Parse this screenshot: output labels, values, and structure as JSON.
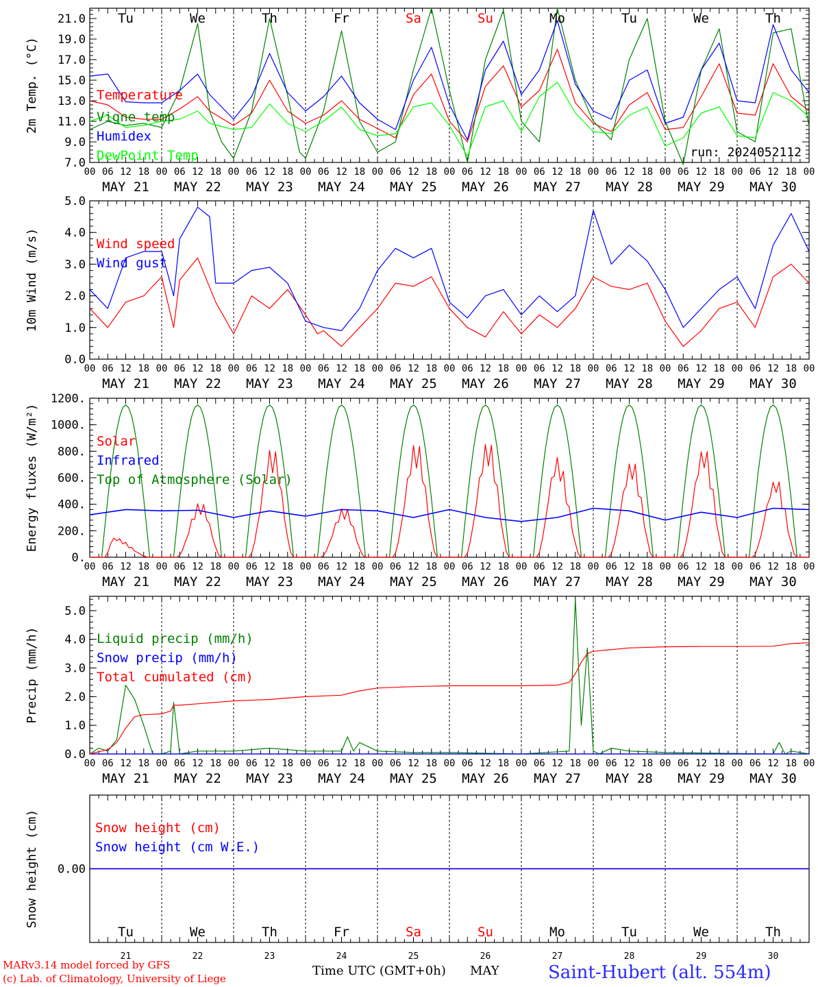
{
  "run_label": "run: 2024052112",
  "time_axis": {
    "hour_labels": [
      "00",
      "06",
      "12",
      "18"
    ],
    "end_label": "00",
    "date_labels": [
      "MAY 21",
      "MAY 22",
      "MAY 23",
      "MAY 24",
      "MAY 25",
      "MAY 26",
      "MAY 27",
      "MAY 28",
      "MAY 29",
      "MAY 30"
    ],
    "day_names": [
      "Tu",
      "We",
      "Th",
      "Fr",
      "Sa",
      "Su",
      "Mo",
      "Tu",
      "We",
      "Th"
    ],
    "weekend_flags": [
      false,
      false,
      false,
      false,
      true,
      true,
      false,
      false,
      false,
      false
    ],
    "day_numbers": [
      "21",
      "22",
      "23",
      "24",
      "25",
      "26",
      "27",
      "28",
      "29",
      "30"
    ],
    "xlabel": "Time UTC (GMT+0h)",
    "month_label": "MAY"
  },
  "footer": {
    "credit_line1": "MARv3.14 model forced by GFS",
    "credit_line2": "(c) Lab. of Climatology, University of Liege",
    "station": "Saint-Hubert (alt. 554m)"
  },
  "colors": {
    "red": "#ff0000",
    "blue": "#0000ff",
    "green": "#008000",
    "lightgreen": "#00ff00",
    "axis": "#000000",
    "weekend": "#ff0000"
  },
  "chart_data": [
    {
      "type": "line",
      "ylabel": "2m Temp. (°C)",
      "ylim": [
        7,
        22
      ],
      "yticks": [
        "7.0",
        "9.0",
        "11.0",
        "13.0",
        "15.0",
        "17.0",
        "19.0",
        "21.0"
      ],
      "x_unit": "hours since 2024-05-21 00 UTC",
      "series": [
        {
          "name": "Temperature",
          "color": "#ff0000",
          "x": [
            0,
            6,
            12,
            18,
            24,
            30,
            36,
            40,
            48,
            54,
            60,
            66,
            72,
            78,
            84,
            90,
            96,
            102,
            108,
            114,
            120,
            126,
            132,
            138,
            144,
            150,
            156,
            162,
            168,
            174,
            180,
            186,
            192,
            198,
            204,
            210,
            216,
            222,
            228,
            234,
            240
          ],
          "values": [
            13.0,
            12.6,
            11.4,
            11.2,
            11.2,
            12.2,
            13.4,
            12.0,
            10.6,
            11.8,
            15.0,
            12.0,
            10.8,
            11.6,
            13.0,
            11.2,
            10.3,
            9.4,
            13.6,
            15.6,
            11.0,
            9.0,
            14.4,
            16.4,
            12.4,
            14.0,
            18.0,
            12.8,
            10.8,
            10.0,
            12.6,
            13.8,
            10.2,
            10.4,
            13.4,
            16.6,
            11.8,
            11.6,
            16.6,
            13.4,
            12.0
          ]
        },
        {
          "name": "Vigne temp",
          "color": "#008000",
          "x": [
            0,
            6,
            12,
            18,
            24,
            30,
            36,
            40,
            44,
            48,
            54,
            60,
            66,
            70,
            72,
            78,
            84,
            90,
            96,
            102,
            108,
            114,
            120,
            126,
            132,
            138,
            144,
            150,
            156,
            162,
            168,
            174,
            180,
            186,
            192,
            198,
            204,
            210,
            216,
            222,
            228,
            234,
            240
          ],
          "values": [
            10.2,
            11.0,
            10.6,
            10.8,
            10.4,
            14.0,
            20.5,
            12.0,
            9.0,
            7.4,
            12.0,
            21.0,
            13.5,
            8.0,
            7.4,
            12.0,
            19.8,
            11.0,
            8.0,
            9.0,
            16.0,
            22.0,
            14.0,
            7.0,
            17.0,
            21.8,
            11.0,
            9.0,
            22.0,
            15.0,
            11.0,
            9.2,
            17.0,
            21.0,
            11.0,
            6.8,
            16.0,
            20.0,
            10.0,
            9.0,
            19.6,
            20.0,
            10.5
          ]
        },
        {
          "name": "Humidex",
          "color": "#0000ff",
          "x": [
            0,
            6,
            12,
            18,
            24,
            30,
            36,
            40,
            48,
            54,
            60,
            66,
            72,
            78,
            84,
            90,
            96,
            102,
            108,
            114,
            120,
            126,
            132,
            138,
            144,
            150,
            156,
            162,
            168,
            174,
            180,
            186,
            192,
            198,
            204,
            210,
            216,
            222,
            228,
            234,
            240
          ],
          "values": [
            15.4,
            15.6,
            12.9,
            12.8,
            12.8,
            14.0,
            15.6,
            13.6,
            11.2,
            13.4,
            17.6,
            13.8,
            12.0,
            13.4,
            15.4,
            12.8,
            11.2,
            10.2,
            15.0,
            18.2,
            12.6,
            9.2,
            16.0,
            18.8,
            13.6,
            16.0,
            20.8,
            14.6,
            12.0,
            11.2,
            15.0,
            16.0,
            10.8,
            11.4,
            16.0,
            18.6,
            13.0,
            12.8,
            20.4,
            16.0,
            13.8
          ]
        },
        {
          "name": "DewPoint Temp",
          "color": "#00ff00",
          "x": [
            0,
            6,
            12,
            18,
            24,
            30,
            36,
            40,
            48,
            54,
            60,
            66,
            72,
            78,
            84,
            90,
            96,
            102,
            108,
            114,
            120,
            126,
            132,
            138,
            144,
            150,
            156,
            162,
            168,
            174,
            180,
            186,
            192,
            198,
            204,
            210,
            216,
            222,
            228,
            234,
            240
          ],
          "values": [
            11.0,
            11.6,
            10.4,
            10.6,
            11.0,
            11.2,
            12.0,
            10.8,
            10.2,
            10.4,
            12.7,
            10.8,
            10.0,
            11.0,
            12.4,
            10.2,
            9.6,
            9.8,
            12.4,
            12.8,
            10.6,
            7.6,
            12.4,
            13.0,
            10.0,
            13.4,
            14.8,
            11.8,
            10.0,
            9.8,
            11.6,
            12.4,
            8.6,
            9.4,
            11.8,
            12.4,
            9.6,
            9.4,
            13.8,
            13.0,
            11.4
          ]
        }
      ]
    },
    {
      "type": "line",
      "ylabel": "10m Wind (m/s)",
      "ylim": [
        0,
        5
      ],
      "yticks": [
        "0.0",
        "1.0",
        "2.0",
        "3.0",
        "4.0",
        "5.0"
      ],
      "series": [
        {
          "name": "Wind speed",
          "color": "#ff0000",
          "x": [
            0,
            6,
            12,
            18,
            24,
            28,
            30,
            36,
            42,
            48,
            54,
            60,
            66,
            72,
            76,
            78,
            84,
            90,
            96,
            102,
            108,
            114,
            120,
            126,
            132,
            138,
            144,
            150,
            156,
            162,
            168,
            174,
            180,
            186,
            192,
            198,
            204,
            210,
            216,
            222,
            228,
            234,
            240
          ],
          "values": [
            1.6,
            1.0,
            1.8,
            2.0,
            2.6,
            1.0,
            2.5,
            3.2,
            1.8,
            0.8,
            2.0,
            1.6,
            2.2,
            1.4,
            0.8,
            0.9,
            0.4,
            1.0,
            1.6,
            2.4,
            2.3,
            2.6,
            1.6,
            1.0,
            0.7,
            1.5,
            0.8,
            1.4,
            1.0,
            1.6,
            2.6,
            2.3,
            2.2,
            2.4,
            1.2,
            0.4,
            0.9,
            1.6,
            1.8,
            1.0,
            2.6,
            3.0,
            2.4
          ]
        },
        {
          "name": "Wind gust",
          "color": "#0000ff",
          "x": [
            0,
            6,
            12,
            18,
            24,
            28,
            30,
            36,
            40,
            42,
            48,
            54,
            60,
            66,
            72,
            78,
            84,
            90,
            96,
            102,
            108,
            114,
            120,
            126,
            132,
            138,
            144,
            150,
            156,
            162,
            168,
            174,
            180,
            186,
            192,
            198,
            204,
            210,
            216,
            222,
            228,
            234,
            240
          ],
          "values": [
            2.2,
            1.6,
            3.2,
            3.4,
            3.4,
            2.0,
            3.8,
            4.8,
            4.5,
            2.4,
            2.4,
            2.8,
            2.9,
            2.4,
            1.2,
            1.0,
            0.9,
            1.6,
            2.8,
            3.5,
            3.2,
            3.5,
            1.8,
            1.3,
            2.0,
            2.2,
            1.4,
            2.0,
            1.5,
            2.0,
            4.7,
            3.0,
            3.6,
            3.1,
            2.2,
            1.0,
            1.6,
            2.2,
            2.6,
            1.6,
            3.6,
            4.6,
            3.4
          ]
        }
      ]
    },
    {
      "type": "line",
      "ylabel": "Energy fluxes (W/m²)",
      "ylim": [
        0,
        1200
      ],
      "yticks": [
        "0.",
        "200.",
        "400.",
        "600.",
        "800.",
        "1000.",
        "1200."
      ],
      "series": [
        {
          "name": "Solar",
          "color": "#ff0000",
          "peak_hour": [
            8,
            13,
            13,
            13,
            13,
            13,
            12,
            13,
            13,
            13
          ],
          "values": [
            150,
            420,
            840,
            380,
            880,
            890,
            760,
            740,
            840,
            600
          ]
        },
        {
          "name": "Infrared",
          "color": "#0000ff",
          "x": [
            0,
            12,
            24,
            36,
            48,
            60,
            72,
            84,
            96,
            108,
            120,
            132,
            144,
            156,
            168,
            180,
            192,
            204,
            216,
            228,
            240
          ],
          "values": [
            320,
            360,
            350,
            355,
            300,
            350,
            310,
            360,
            350,
            300,
            360,
            300,
            270,
            300,
            370,
            350,
            280,
            340,
            300,
            370,
            360
          ]
        },
        {
          "name": "Top of Atmosphere (Solar)",
          "color": "#008000",
          "peak": 1150,
          "rise_hour": 4,
          "set_hour": 20
        }
      ]
    },
    {
      "type": "line",
      "ylabel": "Precip (mm/h)",
      "ylim": [
        0,
        5.5
      ],
      "yticks": [
        "0.0",
        "1.0",
        "2.0",
        "3.0",
        "4.0",
        "5.0"
      ],
      "series": [
        {
          "name": "Liquid precip (mm/h)",
          "color": "#008000",
          "x": [
            0,
            3,
            6,
            9,
            12,
            15,
            18,
            21,
            24,
            27,
            28,
            30,
            36,
            48,
            60,
            72,
            84,
            86,
            88,
            90,
            96,
            108,
            120,
            144,
            160,
            162,
            164,
            166,
            168,
            170,
            172,
            174,
            180,
            192,
            228,
            230,
            232,
            234,
            240
          ],
          "values": [
            0.0,
            0.2,
            0.1,
            0.5,
            2.4,
            1.9,
            1.0,
            0.0,
            0.0,
            0.1,
            1.8,
            0.0,
            0.1,
            0.1,
            0.2,
            0.1,
            0.1,
            0.6,
            0.1,
            0.4,
            0.1,
            0.05,
            0.05,
            0.0,
            0.1,
            5.4,
            1.0,
            3.7,
            0.1,
            0.0,
            0.1,
            0.2,
            0.1,
            0.05,
            0.0,
            0.4,
            0.0,
            0.1,
            0.0
          ]
        },
        {
          "name": "Snow precip (mm/h)",
          "color": "#0000ff",
          "x": [
            0,
            240
          ],
          "values": [
            0,
            0
          ]
        },
        {
          "name": "Total cumulated (cm)",
          "color": "#ff0000",
          "x": [
            0,
            6,
            9,
            12,
            15,
            18,
            24,
            27,
            28,
            30,
            36,
            48,
            60,
            72,
            84,
            90,
            96,
            108,
            120,
            132,
            144,
            156,
            160,
            162,
            164,
            166,
            168,
            180,
            192,
            204,
            216,
            228,
            234,
            240
          ],
          "values": [
            0.0,
            0.15,
            0.4,
            0.9,
            1.3,
            1.37,
            1.4,
            1.5,
            1.7,
            1.7,
            1.75,
            1.85,
            1.9,
            2.0,
            2.05,
            2.2,
            2.3,
            2.35,
            2.38,
            2.38,
            2.38,
            2.4,
            2.5,
            2.8,
            3.2,
            3.5,
            3.58,
            3.7,
            3.74,
            3.75,
            3.75,
            3.76,
            3.85,
            3.88
          ]
        }
      ]
    },
    {
      "type": "line",
      "ylabel": "Snow height (cm)",
      "ytick_labels": [
        "0.00"
      ],
      "series": [
        {
          "name": "Snow height (cm)",
          "color": "#ff0000",
          "x": [
            0,
            240
          ],
          "values": [
            0,
            0
          ]
        },
        {
          "name": "Snow height (cm W.E.)",
          "color": "#0000ff",
          "x": [
            0,
            240
          ],
          "values": [
            0,
            0
          ]
        }
      ]
    }
  ]
}
